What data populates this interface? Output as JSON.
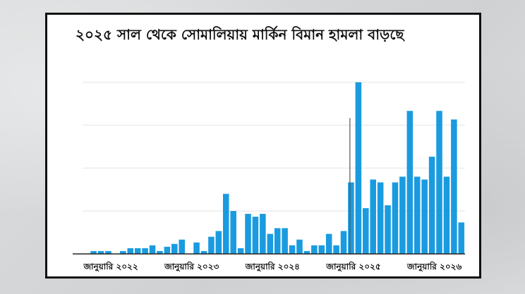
{
  "chart_data": {
    "type": "bar",
    "title": "২০২৫ সাল থেকে সোমালিয়ায় মার্কিন বিমান হামলা বাড়ছে",
    "xlabel": "",
    "ylabel": "",
    "grid": true,
    "bar_color": "#1a9be0",
    "annotation_line_color": "#555555",
    "ylim": [
      0,
      12
    ],
    "x_tick_labels": [
      {
        "label": "জানুয়ারি ২০২২",
        "index": 0
      },
      {
        "label": "জানুয়ারি ২০২৩",
        "index": 11
      },
      {
        "label": "জানুয়ারি ২০২৪",
        "index": 22
      },
      {
        "label": "জানুয়ারি ২০২৫",
        "index": 33
      },
      {
        "label": "জানুয়ারি ২০২৬",
        "index": 44
      }
    ],
    "values": [
      0,
      0.2,
      0.2,
      0.2,
      0,
      0.2,
      0.4,
      0.4,
      0.4,
      0.6,
      0.2,
      0.5,
      0.7,
      1,
      0,
      0.8,
      0.2,
      1.2,
      1.6,
      4.2,
      3,
      0.4,
      2.8,
      2.6,
      2.8,
      1.4,
      1.8,
      1.8,
      0.6,
      1,
      0.2,
      0.6,
      0.6,
      1.4,
      0.6,
      1.6,
      5,
      12,
      3.2,
      5.2,
      5,
      3.4,
      5,
      5.4,
      10,
      5.4,
      5.2,
      6.8,
      10,
      5.4,
      9.4,
      2.2
    ],
    "annotation_line_index": 36,
    "annotation_line_value": 9.5
  }
}
